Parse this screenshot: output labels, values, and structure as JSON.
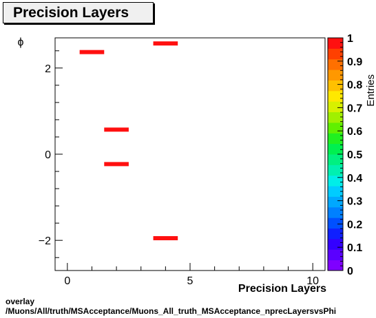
{
  "title": "Precision Layers",
  "footer": {
    "line1": "overlay",
    "line2": "/Muons/All/truth/MSAcceptance/Muons_All_truth_MSAcceptance_nprecLayersvsPhi"
  },
  "chart_data": {
    "type": "heatmap",
    "title": "Precision Layers",
    "xlabel": "Precision Layers",
    "ylabel": "ϕ",
    "zlabel": "Entries",
    "xlim": [
      -0.5,
      10.5
    ],
    "ylim": [
      -2.7,
      2.7
    ],
    "zlim": [
      0,
      1
    ],
    "x_ticks": [
      0,
      5,
      10
    ],
    "y_ticks": [
      -2,
      0,
      2
    ],
    "z_ticks": [
      0,
      0.1,
      0.2,
      0.3,
      0.4,
      0.5,
      0.6,
      0.7,
      0.8,
      0.9,
      1
    ],
    "cells": [
      {
        "x0": 0.5,
        "x1": 1.5,
        "y": 2.37,
        "value": 1
      },
      {
        "x0": 3.5,
        "x1": 4.5,
        "y": 2.57,
        "value": 1
      },
      {
        "x0": 1.5,
        "x1": 2.5,
        "y": 0.57,
        "value": 1
      },
      {
        "x0": 1.5,
        "x1": 2.5,
        "y": -0.23,
        "value": 1
      },
      {
        "x0": 3.5,
        "x1": 4.5,
        "y": -1.95,
        "value": 1
      }
    ],
    "palette": [
      "#7f00ff",
      "#5a00ff",
      "#3300ff",
      "#0f20ff",
      "#0050ff",
      "#0080ff",
      "#00a8ff",
      "#00ccff",
      "#00eee8",
      "#00f0b0",
      "#00f080",
      "#00f050",
      "#20f020",
      "#60f000",
      "#a0f000",
      "#d8f000",
      "#ffe800",
      "#ffc000",
      "#ff9800",
      "#ff7000",
      "#ff4000",
      "#ff1010"
    ],
    "grid": false,
    "legend": "colorbar-right"
  }
}
